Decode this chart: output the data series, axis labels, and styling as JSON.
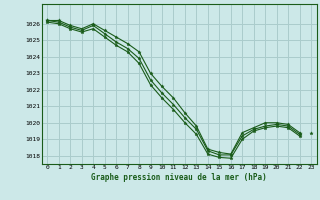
{
  "title": "Graphe pression niveau de la mer (hPa)",
  "bg_color": "#cce8e8",
  "grid_color": "#aacccc",
  "line_color": "#1a5c1a",
  "xlim": [
    -0.5,
    23.5
  ],
  "ylim": [
    1017.5,
    1027.2
  ],
  "yticks": [
    1018,
    1019,
    1020,
    1021,
    1022,
    1023,
    1024,
    1025,
    1026
  ],
  "xticks": [
    0,
    1,
    2,
    3,
    4,
    5,
    6,
    7,
    8,
    9,
    10,
    11,
    12,
    13,
    14,
    15,
    16,
    17,
    18,
    19,
    20,
    21,
    22,
    23
  ],
  "series": [
    [
      1026.2,
      1026.2,
      1025.9,
      1025.7,
      1026.0,
      1025.6,
      1025.2,
      1024.8,
      1024.3,
      1023.0,
      1022.2,
      1021.5,
      1020.6,
      1019.8,
      1018.4,
      1018.2,
      1018.1,
      1019.4,
      1019.7,
      1020.0,
      1020.0,
      1019.9,
      1019.4,
      null
    ],
    [
      1026.2,
      1026.1,
      1025.8,
      1025.6,
      1025.9,
      1025.4,
      1024.9,
      1024.5,
      1023.9,
      1022.6,
      1021.8,
      1021.1,
      1020.3,
      1019.6,
      1018.3,
      1018.05,
      1018.05,
      1019.2,
      1019.6,
      1019.8,
      1019.9,
      1019.8,
      1019.3,
      null
    ],
    [
      1026.1,
      1026.0,
      1025.7,
      1025.5,
      1025.7,
      1025.2,
      1024.7,
      1024.3,
      1023.6,
      1022.3,
      1021.5,
      1020.8,
      1020.0,
      1019.3,
      1018.1,
      1017.9,
      1017.85,
      1019.0,
      1019.5,
      1019.7,
      1019.8,
      1019.7,
      1019.2,
      null
    ],
    [
      null,
      null,
      null,
      null,
      null,
      null,
      null,
      null,
      null,
      null,
      null,
      null,
      null,
      null,
      null,
      null,
      null,
      null,
      null,
      null,
      null,
      null,
      null,
      1019.4
    ]
  ]
}
